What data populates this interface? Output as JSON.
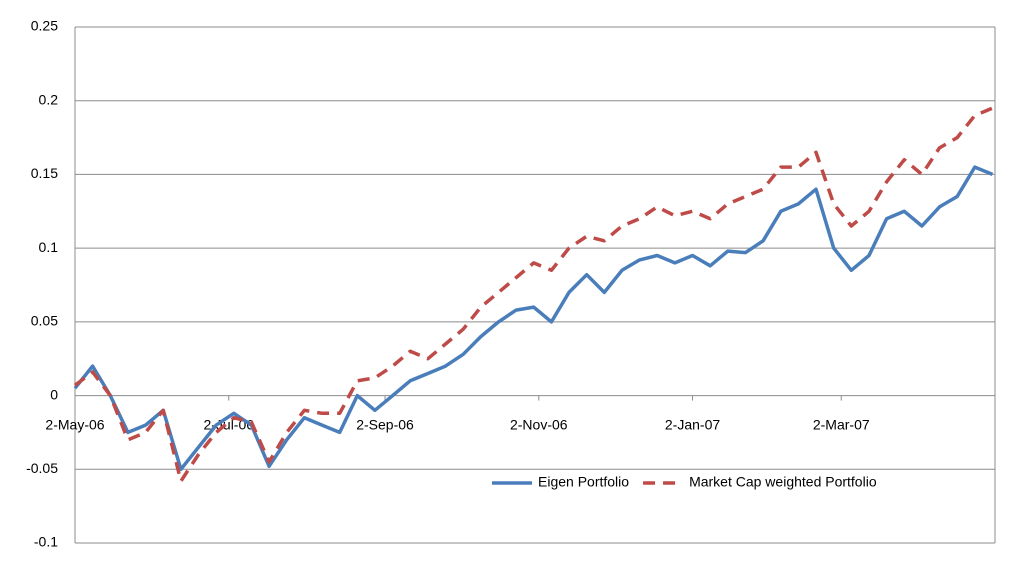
{
  "chart_data": {
    "type": "line",
    "x": [
      "2006-05-02",
      "2006-05-09",
      "2006-05-16",
      "2006-05-23",
      "2006-05-30",
      "2006-06-06",
      "2006-06-13",
      "2006-06-20",
      "2006-06-27",
      "2006-07-04",
      "2006-07-11",
      "2006-07-18",
      "2006-07-25",
      "2006-08-01",
      "2006-08-08",
      "2006-08-15",
      "2006-08-22",
      "2006-08-29",
      "2006-09-05",
      "2006-09-12",
      "2006-09-19",
      "2006-09-26",
      "2006-10-03",
      "2006-10-10",
      "2006-10-17",
      "2006-10-24",
      "2006-10-31",
      "2006-11-07",
      "2006-11-14",
      "2006-11-21",
      "2006-11-28",
      "2006-12-05",
      "2006-12-12",
      "2006-12-19",
      "2006-12-26",
      "2007-01-02",
      "2007-01-09",
      "2007-01-16",
      "2007-01-23",
      "2007-01-30",
      "2007-02-06",
      "2007-02-13",
      "2007-02-20",
      "2007-02-27",
      "2007-03-06",
      "2007-03-13",
      "2007-03-20",
      "2007-03-27",
      "2007-04-03",
      "2007-04-10",
      "2007-04-17",
      "2007-04-24",
      "2007-05-01"
    ],
    "series": [
      {
        "name": "Eigen Portfolio",
        "color": "#4a7ebb",
        "dash": false,
        "values": [
          0.005,
          0.02,
          0.0,
          -0.025,
          -0.02,
          -0.01,
          -0.05,
          -0.035,
          -0.02,
          -0.012,
          -0.02,
          -0.048,
          -0.03,
          -0.015,
          -0.02,
          -0.025,
          0.0,
          -0.01,
          0.0,
          0.01,
          0.015,
          0.02,
          0.028,
          0.04,
          0.05,
          0.058,
          0.06,
          0.05,
          0.07,
          0.082,
          0.07,
          0.085,
          0.092,
          0.095,
          0.09,
          0.095,
          0.088,
          0.098,
          0.097,
          0.105,
          0.125,
          0.13,
          0.14,
          0.1,
          0.085,
          0.095,
          0.12,
          0.125,
          0.115,
          0.128,
          0.135,
          0.155,
          0.15
        ]
      },
      {
        "name": "Market Cap weighted Portfolio",
        "color": "#be4b48",
        "dash": true,
        "values": [
          0.007,
          0.016,
          0.0,
          -0.03,
          -0.025,
          -0.01,
          -0.058,
          -0.04,
          -0.025,
          -0.015,
          -0.018,
          -0.045,
          -0.025,
          -0.01,
          -0.012,
          -0.012,
          0.01,
          0.012,
          0.02,
          0.03,
          0.025,
          0.035,
          0.045,
          0.06,
          0.07,
          0.08,
          0.09,
          0.085,
          0.1,
          0.108,
          0.105,
          0.115,
          0.12,
          0.128,
          0.122,
          0.125,
          0.12,
          0.13,
          0.135,
          0.14,
          0.155,
          0.155,
          0.165,
          0.13,
          0.115,
          0.125,
          0.145,
          0.16,
          0.15,
          0.168,
          0.175,
          0.19,
          0.195
        ]
      }
    ],
    "xlim": [
      "2006-05-02",
      "2007-05-02"
    ],
    "xticks": [
      {
        "value": "2006-05-02",
        "label": "2-May-06"
      },
      {
        "value": "2006-07-02",
        "label": "2-Jul-06"
      },
      {
        "value": "2006-09-02",
        "label": "2-Sep-06"
      },
      {
        "value": "2006-11-02",
        "label": "2-Nov-06"
      },
      {
        "value": "2007-01-02",
        "label": "2-Jan-07"
      },
      {
        "value": "2007-03-02",
        "label": "2-Mar-07"
      }
    ],
    "ylim": [
      -0.1,
      0.25
    ],
    "yticks": [
      -0.1,
      -0.05,
      0,
      0.05,
      0.1,
      0.15,
      0.2,
      0.25
    ],
    "grid": true,
    "legend": "lower center"
  }
}
